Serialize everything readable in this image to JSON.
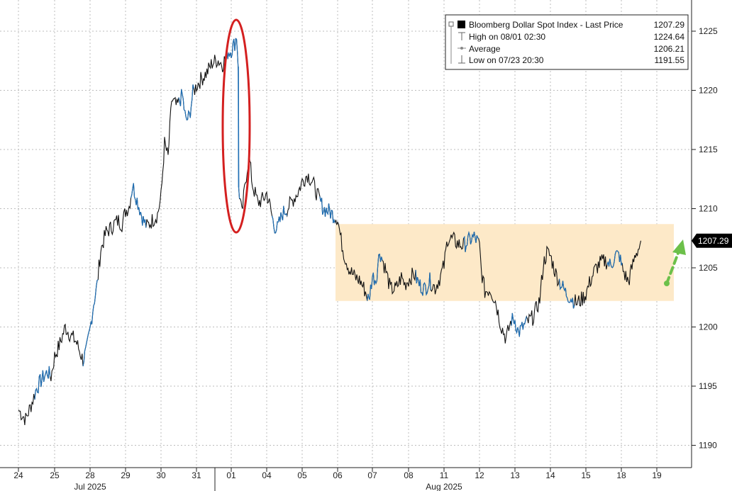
{
  "chart_data": {
    "type": "line",
    "title": "",
    "xlabel": "",
    "ylabel": "",
    "ylim": [
      1188.5,
      1226.5
    ],
    "y_ticks": [
      1190,
      1195,
      1200,
      1205,
      1210,
      1215,
      1220,
      1225
    ],
    "x_ticks": [
      "24",
      "25",
      "28",
      "29",
      "30",
      "31",
      "01",
      "04",
      "05",
      "06",
      "07",
      "08",
      "11",
      "12",
      "13",
      "14",
      "15",
      "18",
      "19"
    ],
    "months": [
      {
        "label": "Jul 2025",
        "start_tick": "24"
      },
      {
        "label": "Aug 2025",
        "start_tick": "01"
      }
    ],
    "last_price_label": "1207.29",
    "range_band": {
      "low": 1202.2,
      "high": 1208.7,
      "from_tick": "06",
      "to_tick": "19",
      "color": "#fde9c8"
    },
    "legend": {
      "placement": "top-right",
      "entries": [
        {
          "label": "Bloomberg Dollar Spot Index - Last Price",
          "value": "1207.29",
          "marker": "square"
        },
        {
          "label": "High on 08/01 02:30",
          "value": "1224.64",
          "marker": "high"
        },
        {
          "label": "Average",
          "value": "1206.21",
          "marker": "average"
        },
        {
          "label": "Low on 07/23 20:30",
          "value": "1191.55",
          "marker": "low"
        }
      ]
    },
    "series": [
      {
        "color_black": "#111111",
        "color_blue": "#1f6fb5",
        "points": [
          [
            0.0,
            1193.0
          ],
          [
            0.2,
            1192.2
          ],
          [
            0.35,
            1193.4
          ],
          [
            0.5,
            1194.8
          ],
          [
            0.65,
            1195.6
          ],
          [
            0.8,
            1196.2
          ],
          [
            0.9,
            1195.8
          ],
          [
            1.0,
            1197.5
          ],
          [
            1.15,
            1198.6
          ],
          [
            1.3,
            1200.0
          ],
          [
            1.45,
            1199.3
          ],
          [
            1.6,
            1198.8
          ],
          [
            1.7,
            1198.0
          ],
          [
            1.8,
            1197.2
          ],
          [
            1.9,
            1198.0
          ],
          [
            2.0,
            1199.8
          ],
          [
            2.1,
            1202.0
          ],
          [
            2.2,
            1203.6
          ],
          [
            2.3,
            1206.5
          ],
          [
            2.45,
            1208.0
          ],
          [
            2.6,
            1208.4
          ],
          [
            2.7,
            1208.8
          ],
          [
            2.8,
            1209.0
          ],
          [
            2.9,
            1208.7
          ],
          [
            3.0,
            1209.8
          ],
          [
            3.1,
            1210.2
          ],
          [
            3.2,
            1212.0
          ],
          [
            3.3,
            1211.0
          ],
          [
            3.4,
            1210.0
          ],
          [
            3.5,
            1209.0
          ],
          [
            3.6,
            1208.5
          ],
          [
            3.75,
            1209.0
          ],
          [
            3.9,
            1209.5
          ],
          [
            4.0,
            1211.0
          ],
          [
            4.1,
            1215.5
          ],
          [
            4.2,
            1214.3
          ],
          [
            4.3,
            1219.2
          ],
          [
            4.45,
            1218.6
          ],
          [
            4.6,
            1219.6
          ],
          [
            4.7,
            1217.4
          ],
          [
            4.8,
            1217.8
          ],
          [
            4.9,
            1219.8
          ],
          [
            5.0,
            1220.4
          ],
          [
            5.15,
            1221.0
          ],
          [
            5.3,
            1221.5
          ],
          [
            5.45,
            1222.3
          ],
          [
            5.6,
            1222.6
          ],
          [
            5.75,
            1222.2
          ],
          [
            5.9,
            1223.2
          ],
          [
            6.0,
            1223.4
          ],
          [
            6.1,
            1224.0
          ],
          [
            6.15,
            1224.64
          ],
          [
            6.2,
            1222.0
          ],
          [
            6.21,
            1211.8
          ],
          [
            6.3,
            1209.5
          ],
          [
            6.4,
            1212.3
          ],
          [
            6.5,
            1214.5
          ],
          [
            6.6,
            1212.0
          ],
          [
            6.75,
            1210.5
          ],
          [
            6.9,
            1210.8
          ],
          [
            7.0,
            1211.3
          ],
          [
            7.1,
            1210.1
          ],
          [
            7.2,
            1208.6
          ],
          [
            7.3,
            1208.3
          ],
          [
            7.45,
            1209.6
          ],
          [
            7.6,
            1210.1
          ],
          [
            7.75,
            1210.8
          ],
          [
            7.9,
            1211.5
          ],
          [
            8.0,
            1212.3
          ],
          [
            8.15,
            1212.9
          ],
          [
            8.3,
            1212.2
          ],
          [
            8.45,
            1211.0
          ],
          [
            8.6,
            1210.0
          ],
          [
            8.75,
            1209.8
          ],
          [
            8.9,
            1209.4
          ],
          [
            9.0,
            1209.2
          ],
          [
            9.1,
            1207.3
          ],
          [
            9.2,
            1206.0
          ],
          [
            9.35,
            1204.8
          ],
          [
            9.5,
            1204.2
          ],
          [
            9.65,
            1203.9
          ],
          [
            9.8,
            1203.0
          ],
          [
            9.9,
            1202.2
          ],
          [
            10.0,
            1204.3
          ],
          [
            10.1,
            1204.0
          ],
          [
            10.2,
            1206.4
          ],
          [
            10.35,
            1205.0
          ],
          [
            10.5,
            1203.2
          ],
          [
            10.65,
            1203.2
          ],
          [
            10.8,
            1204.2
          ],
          [
            10.9,
            1203.6
          ],
          [
            11.0,
            1204.0
          ],
          [
            11.15,
            1204.5
          ],
          [
            11.3,
            1203.6
          ],
          [
            11.45,
            1203.2
          ],
          [
            11.6,
            1203.9
          ],
          [
            11.75,
            1203.3
          ],
          [
            11.9,
            1204.3
          ],
          [
            12.0,
            1205.2
          ],
          [
            12.1,
            1207.5
          ],
          [
            12.25,
            1207.4
          ],
          [
            12.4,
            1207.0
          ],
          [
            12.55,
            1206.9
          ],
          [
            12.7,
            1207.3
          ],
          [
            12.85,
            1207.6
          ],
          [
            12.95,
            1207.2
          ],
          [
            13.0,
            1206.8
          ],
          [
            13.05,
            1204.8
          ],
          [
            13.15,
            1203.0
          ],
          [
            13.3,
            1203.2
          ],
          [
            13.45,
            1202.2
          ],
          [
            13.6,
            1200.2
          ],
          [
            13.75,
            1199.0
          ],
          [
            13.9,
            1200.6
          ],
          [
            14.0,
            1200.6
          ],
          [
            14.1,
            1199.5
          ],
          [
            14.2,
            1199.9
          ],
          [
            14.35,
            1200.4
          ],
          [
            14.5,
            1200.8
          ],
          [
            14.6,
            1201.5
          ],
          [
            14.7,
            1202.3
          ],
          [
            14.8,
            1205.3
          ],
          [
            14.9,
            1206.3
          ],
          [
            15.0,
            1206.0
          ],
          [
            15.15,
            1204.5
          ],
          [
            15.3,
            1203.6
          ],
          [
            15.45,
            1202.8
          ],
          [
            15.6,
            1202.4
          ],
          [
            15.75,
            1202.0
          ],
          [
            15.9,
            1202.4
          ],
          [
            16.0,
            1202.8
          ],
          [
            16.1,
            1203.7
          ],
          [
            16.25,
            1204.8
          ],
          [
            16.4,
            1205.4
          ],
          [
            16.55,
            1205.6
          ],
          [
            16.7,
            1205.2
          ],
          [
            16.85,
            1206.1
          ],
          [
            16.95,
            1206.0
          ],
          [
            17.0,
            1205.2
          ],
          [
            17.1,
            1204.4
          ],
          [
            17.2,
            1203.8
          ],
          [
            17.3,
            1205.0
          ],
          [
            17.4,
            1206.2
          ],
          [
            17.5,
            1206.7
          ],
          [
            17.55,
            1207.29
          ]
        ]
      }
    ]
  }
}
